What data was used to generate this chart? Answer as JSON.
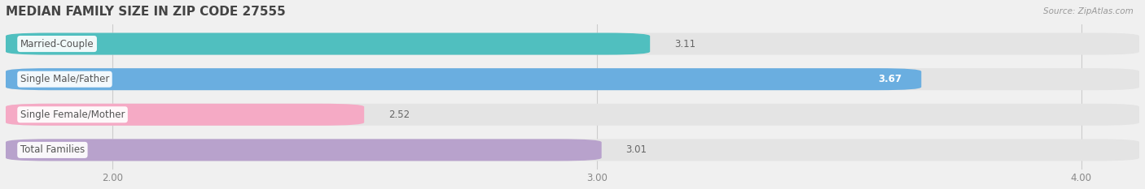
{
  "title": "MEDIAN FAMILY SIZE IN ZIP CODE 27555",
  "source": "Source: ZipAtlas.com",
  "categories": [
    "Married-Couple",
    "Single Male/Father",
    "Single Female/Mother",
    "Total Families"
  ],
  "values": [
    3.11,
    3.67,
    2.52,
    3.01
  ],
  "bar_colors": [
    "#50bfbf",
    "#6aaee0",
    "#f5aac5",
    "#b8a2cc"
  ],
  "value_label_inside": [
    false,
    true,
    false,
    false
  ],
  "value_label_color_inside": "white",
  "value_label_color_outside": "#666666",
  "xlim_min": 1.78,
  "xlim_max": 4.12,
  "xticks": [
    2.0,
    3.0,
    4.0
  ],
  "xtick_labels": [
    "2.00",
    "3.00",
    "4.00"
  ],
  "bar_height": 0.62,
  "bar_gap": 0.38,
  "background_color": "#f0f0f0",
  "bar_bg_color": "#e4e4e4",
  "title_fontsize": 11,
  "label_fontsize": 8.5,
  "value_fontsize": 8.5,
  "tick_fontsize": 8.5,
  "grid_color": "#cccccc",
  "label_pill_color": "white",
  "label_text_color": "#555555"
}
